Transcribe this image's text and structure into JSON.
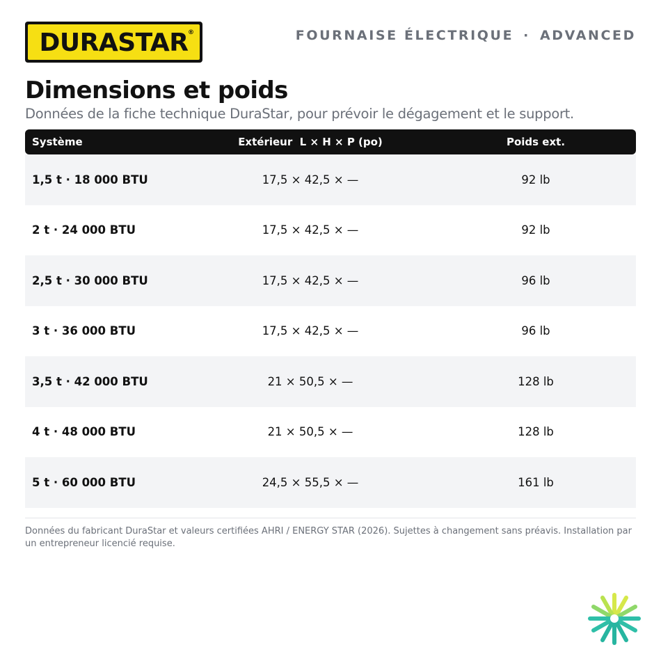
{
  "brand": {
    "logo_text": "DURASTAR",
    "registered_mark": "®",
    "colors": {
      "logo_yellow": "#f6df13",
      "logo_black": "#111111"
    }
  },
  "header": {
    "product": "FOURNAISE ÉLECTRIQUE",
    "separator": "·",
    "tier": "ADVANCED"
  },
  "title": "Dimensions et poids",
  "subtitle": "Données de la fiche technique DuraStar, pour prévoir le dégagement et le support.",
  "table": {
    "headers": {
      "system": "Système",
      "exterior": "Extérieur  L × H × P (po)",
      "weight": "Poids ext."
    },
    "rows": [
      {
        "system": "1,5 t · 18 000 BTU",
        "exterior": "17,5 × 42,5 × —",
        "weight": "92 lb"
      },
      {
        "system": "2 t · 24 000 BTU",
        "exterior": "17,5 × 42,5 × —",
        "weight": "92 lb"
      },
      {
        "system": "2,5 t · 30 000 BTU",
        "exterior": "17,5 × 42,5 × —",
        "weight": "96 lb"
      },
      {
        "system": "3 t · 36 000 BTU",
        "exterior": "17,5 × 42,5 × —",
        "weight": "96 lb"
      },
      {
        "system": "3,5 t · 42 000 BTU",
        "exterior": "21 × 50,5 × —",
        "weight": "128 lb"
      },
      {
        "system": "4 t · 48 000 BTU",
        "exterior": "21 × 50,5 × —",
        "weight": "128 lb"
      },
      {
        "system": "5 t · 60 000 BTU",
        "exterior": "24,5 × 55,5 × —",
        "weight": "161 lb"
      }
    ]
  },
  "footnote": "Données du fabricant DuraStar et valeurs certifiées AHRI / ENERGY STAR (2026). Sujettes à changement sans préavis. Installation par un entrepreneur licencié requise.",
  "icons": {
    "corner_mark": "snowflake-sun-icon"
  },
  "colors": {
    "header_bg": "#111111",
    "alt_row": "#f3f4f6",
    "muted_text": "#6b7079",
    "mark_teal": "#2fbfa8",
    "mark_yellow": "#d6e84a"
  }
}
